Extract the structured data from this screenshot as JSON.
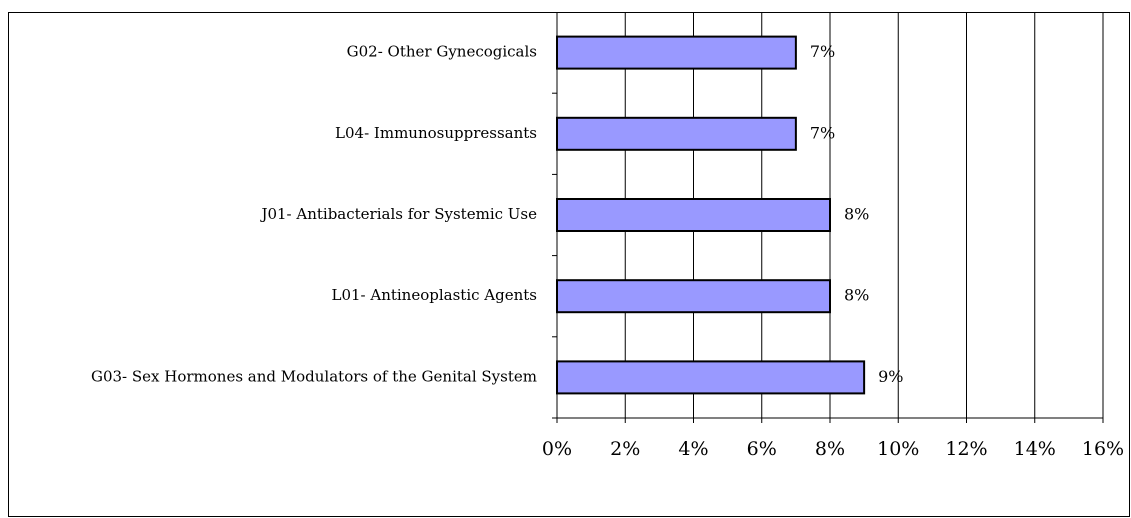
{
  "chart_data": {
    "type": "bar",
    "orientation": "horizontal",
    "categories": [
      "G02- Other Gynecogicals",
      "L04- Immunosuppressants",
      "J01- Antibacterials for Systemic Use",
      "L01- Antineoplastic Agents",
      "G03- Sex Hormones and Modulators of the Genital System"
    ],
    "values": [
      7,
      7,
      8,
      8,
      9
    ],
    "value_labels": [
      "7%",
      "7%",
      "8%",
      "8%",
      "9%"
    ],
    "color": "#9999ff",
    "xlim": [
      0,
      16
    ],
    "xticks": [
      {
        "value": 0,
        "label": "0%"
      },
      {
        "value": 2,
        "label": "2%"
      },
      {
        "value": 4,
        "label": "4%"
      },
      {
        "value": 6,
        "label": "6%"
      },
      {
        "value": 8,
        "label": "8%"
      },
      {
        "value": 10,
        "label": "10%"
      },
      {
        "value": 12,
        "label": "12%"
      },
      {
        "value": 14,
        "label": "14%"
      },
      {
        "value": 16,
        "label": "16%"
      }
    ],
    "grid": true
  }
}
